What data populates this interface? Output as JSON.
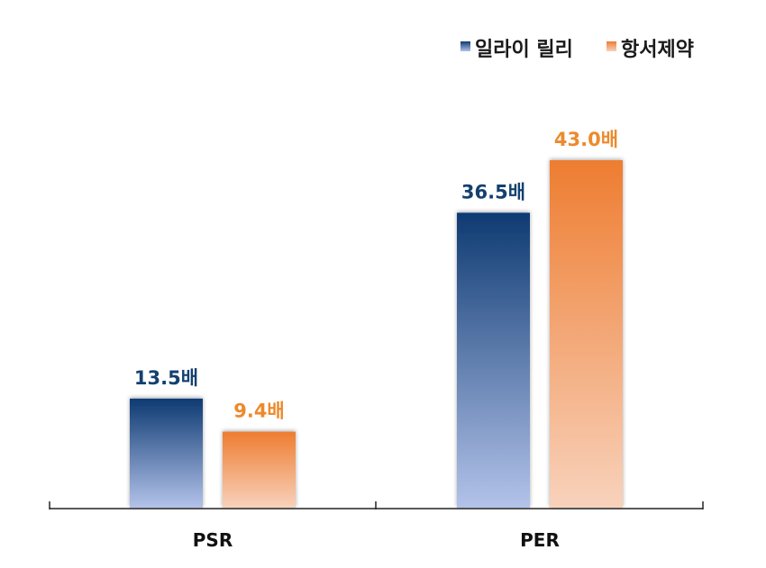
{
  "chart_data": {
    "type": "bar",
    "categories": [
      "PSR",
      "PER"
    ],
    "series": [
      {
        "name": "일라이 릴리",
        "values": [
          13.5,
          36.5
        ],
        "labels": [
          "13.5배",
          "36.5배"
        ],
        "color_top": "#0e3a72",
        "color_bottom": "#b3c3ea",
        "label_color": "#13406f"
      },
      {
        "name": "항서제약",
        "values": [
          9.4,
          43.0
        ],
        "labels": [
          "9.4배",
          "43.0배"
        ],
        "color_top": "#ee7d31",
        "color_bottom": "#f8d2bc",
        "label_color": "#ec8a2c"
      }
    ],
    "ylim": [
      0,
      43.0
    ],
    "legend_position": "top-right",
    "grid": false
  }
}
